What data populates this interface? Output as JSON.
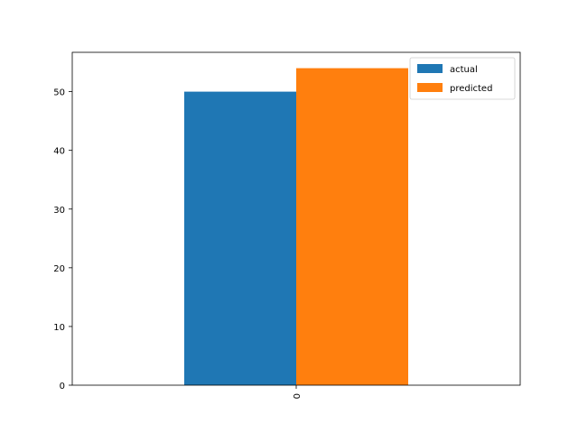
{
  "chart_data": {
    "type": "bar",
    "categories": [
      "0"
    ],
    "series": [
      {
        "name": "actual",
        "values": [
          50
        ],
        "color": "#1f77b4"
      },
      {
        "name": "predicted",
        "values": [
          54
        ],
        "color": "#ff7f0e"
      }
    ],
    "title": "",
    "xlabel": "",
    "ylabel": "",
    "ylim": [
      0,
      56.7
    ],
    "yticks": [
      0,
      10,
      20,
      30,
      40,
      50
    ],
    "xtick_rotation": 90,
    "legend_position": "top-right",
    "grid": false
  }
}
